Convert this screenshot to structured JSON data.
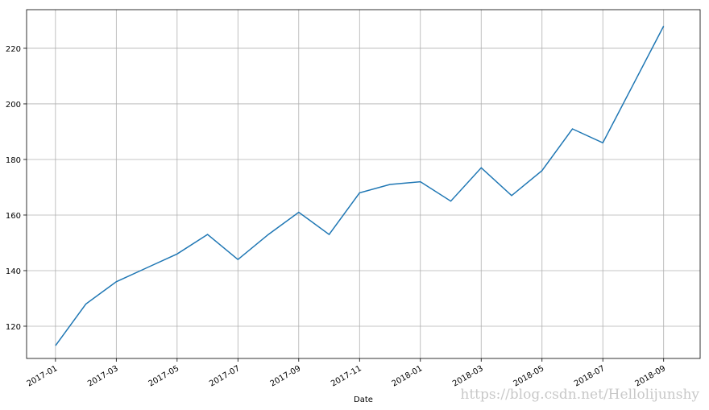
{
  "chart_data": {
    "type": "line",
    "x_label": "Date",
    "watermark": "https://blog.csdn.net/Hellolijunshy",
    "x": [
      "2017-01",
      "2017-02",
      "2017-03",
      "2017-04",
      "2017-05",
      "2017-06",
      "2017-07",
      "2017-08",
      "2017-09",
      "2017-10",
      "2017-11",
      "2017-12",
      "2018-01",
      "2018-02",
      "2018-03",
      "2018-04",
      "2018-05",
      "2018-06",
      "2018-07",
      "2018-08",
      "2018-09"
    ],
    "values": [
      113,
      128,
      136,
      141,
      146,
      153,
      144,
      153,
      161,
      153,
      168,
      171,
      172,
      165,
      177,
      167,
      176,
      191,
      186,
      207,
      228
    ],
    "color": "#1f77b4",
    "ylim": [
      108.4,
      233.9
    ],
    "yticks": [
      120,
      140,
      160,
      180,
      200,
      220
    ],
    "xticks": [
      "2017-01",
      "2017-03",
      "2017-05",
      "2017-07",
      "2017-09",
      "2017-11",
      "2018-01",
      "2018-03",
      "2018-05",
      "2018-07",
      "2018-09"
    ],
    "grid": true
  }
}
